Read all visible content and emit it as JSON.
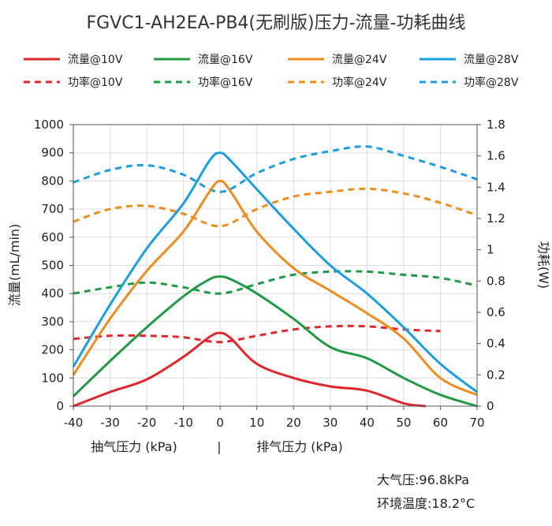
{
  "chart_data": {
    "type": "line",
    "title": "FGVC1-AH2EA-PB4(无刷版)压力-流量-功耗曲线",
    "xlabel_left": "抽气压力 (kPa)",
    "xlabel_right": "排气压力 (kPa)",
    "xlabel_separator": "|",
    "ylabel": "流量(mL/min)",
    "y2label": "功耗(W)",
    "xlim": [
      -40,
      70
    ],
    "ylim": [
      0,
      1000
    ],
    "y2lim": [
      0,
      1.8
    ],
    "xticks": [
      "-40",
      "-30",
      "-20",
      "-10",
      "0",
      "10",
      "20",
      "30",
      "40",
      "50",
      "60",
      "70"
    ],
    "yticks": [
      "0",
      "100",
      "200",
      "300",
      "400",
      "500",
      "600",
      "700",
      "800",
      "900",
      "1000"
    ],
    "y2ticks": [
      "0",
      "0.2",
      "0.4",
      "0.6",
      "0.8",
      "1",
      "1.2",
      "1.4",
      "1.6",
      "1.8"
    ],
    "grid": true,
    "legend_position": "top",
    "series": [
      {
        "name": "流量@10V",
        "axis": "left",
        "style": "solid",
        "color": "#e0262b",
        "x": [
          -40,
          -30,
          -20,
          -10,
          -3,
          0,
          3,
          10,
          20,
          30,
          40,
          50,
          56
        ],
        "y": [
          0,
          50,
          95,
          175,
          245,
          260,
          240,
          150,
          100,
          70,
          55,
          10,
          0
        ]
      },
      {
        "name": "流量@16V",
        "axis": "left",
        "style": "solid",
        "color": "#1f9a45",
        "x": [
          -40,
          -30,
          -20,
          -10,
          -3,
          0,
          3,
          10,
          20,
          30,
          40,
          50,
          60,
          70
        ],
        "y": [
          35,
          160,
          280,
          390,
          450,
          460,
          450,
          400,
          310,
          210,
          170,
          100,
          40,
          0
        ]
      },
      {
        "name": "流量@24V",
        "axis": "left",
        "style": "solid",
        "color": "#f08b1d",
        "x": [
          -40,
          -30,
          -20,
          -10,
          -3,
          0,
          3,
          10,
          20,
          30,
          40,
          50,
          60,
          70
        ],
        "y": [
          110,
          310,
          480,
          620,
          760,
          800,
          760,
          620,
          490,
          410,
          330,
          240,
          100,
          40
        ]
      },
      {
        "name": "流量@28V",
        "axis": "left",
        "style": "solid",
        "color": "#1a9ee0",
        "x": [
          -40,
          -30,
          -20,
          -10,
          -3,
          0,
          3,
          10,
          20,
          30,
          40,
          50,
          60,
          70
        ],
        "y": [
          140,
          360,
          560,
          720,
          870,
          900,
          870,
          770,
          630,
          500,
          400,
          280,
          150,
          50
        ]
      },
      {
        "name": "功率@10V",
        "axis": "right",
        "style": "dashed",
        "color": "#e0262b",
        "x": [
          -40,
          -30,
          -20,
          -10,
          0,
          10,
          20,
          30,
          40,
          50,
          60
        ],
        "y": [
          0.43,
          0.45,
          0.45,
          0.44,
          0.41,
          0.45,
          0.49,
          0.51,
          0.51,
          0.49,
          0.48
        ]
      },
      {
        "name": "功率@16V",
        "axis": "right",
        "style": "dashed",
        "color": "#1f9a45",
        "x": [
          -40,
          -30,
          -20,
          -10,
          0,
          10,
          20,
          30,
          40,
          50,
          60,
          70
        ],
        "y": [
          0.72,
          0.76,
          0.79,
          0.76,
          0.72,
          0.78,
          0.84,
          0.86,
          0.86,
          0.84,
          0.82,
          0.77
        ]
      },
      {
        "name": "功率@24V",
        "axis": "right",
        "style": "dashed",
        "color": "#f08b1d",
        "x": [
          -40,
          -30,
          -20,
          -10,
          0,
          10,
          20,
          30,
          40,
          50,
          60,
          70
        ],
        "y": [
          1.18,
          1.26,
          1.28,
          1.23,
          1.15,
          1.26,
          1.34,
          1.37,
          1.39,
          1.36,
          1.3,
          1.22
        ]
      },
      {
        "name": "功率@28V",
        "axis": "right",
        "style": "dashed",
        "color": "#1a9ee0",
        "x": [
          -40,
          -30,
          -20,
          -10,
          0,
          10,
          20,
          30,
          40,
          50,
          60,
          70
        ],
        "y": [
          1.43,
          1.51,
          1.54,
          1.48,
          1.37,
          1.49,
          1.58,
          1.63,
          1.66,
          1.6,
          1.53,
          1.45
        ]
      }
    ]
  },
  "notes": {
    "pressure": "大气压:96.8kPa",
    "temperature": "环境温度:18.2°C"
  }
}
